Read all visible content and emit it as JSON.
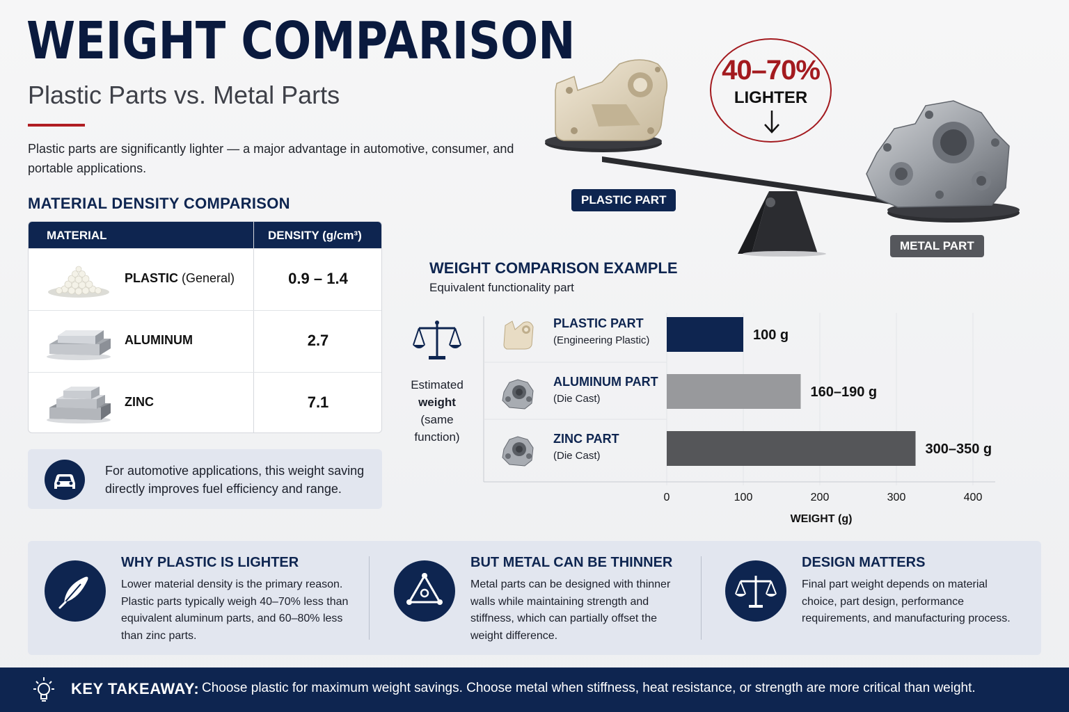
{
  "header": {
    "title": "WEIGHT COMPARISON",
    "subtitle": "Plastic Parts vs. Metal Parts",
    "intro": "Plastic parts are significantly lighter — a major advantage in automotive, consumer, and portable applications."
  },
  "density_table": {
    "heading": "MATERIAL DENSITY COMPARISON",
    "col_material": "MATERIAL",
    "col_density": "DENSITY (g/cm³)",
    "rows": [
      {
        "name": "PLASTIC",
        "qualifier": " (General)",
        "density": "0.9 – 1.4"
      },
      {
        "name": "ALUMINUM",
        "qualifier": "",
        "density": "2.7"
      },
      {
        "name": "ZINC",
        "qualifier": "",
        "density": "7.1"
      }
    ]
  },
  "auto_note": {
    "text": "For automotive applications, this weight saving directly improves fuel efficiency and range.",
    "icon": "car-icon"
  },
  "seesaw": {
    "badge_value": "40–70%",
    "badge_word": "LIGHTER",
    "plastic_tag": "PLASTIC PART",
    "metal_tag": "METAL PART"
  },
  "weight_chart": {
    "heading": "WEIGHT COMPARISON EXAMPLE",
    "subheading": "Equivalent functionality part",
    "side_label_1": "Estimated",
    "side_label_2": "weight",
    "side_label_3": "(same",
    "side_label_4": "function)"
  },
  "chart_data": {
    "type": "bar",
    "orientation": "horizontal",
    "categories": [
      "PLASTIC PART",
      "ALUMINUM PART",
      "ZINC PART"
    ],
    "category_notes": [
      "(Engineering Plastic)",
      "(Die Cast)",
      "(Die Cast)"
    ],
    "values": [
      100,
      175,
      325
    ],
    "value_labels": [
      "100 g",
      "160–190 g",
      "300–350 g"
    ],
    "colors": [
      "#0e2550",
      "#98999c",
      "#555659"
    ],
    "xlabel": "WEIGHT (g)",
    "xlim": [
      0,
      400
    ],
    "xticks": [
      "0",
      "100",
      "200",
      "300",
      "400"
    ],
    "grid": true
  },
  "info_strip": [
    {
      "title": "WHY PLASTIC IS LIGHTER",
      "body": "Lower material density is the primary reason. Plastic parts typically weigh 40–70% less than equivalent aluminum parts, and 60–80% less than zinc parts.",
      "icon": "feather-icon"
    },
    {
      "title": "BUT METAL CAN BE THINNER",
      "body": "Metal parts can be designed with thinner walls while maintaining strength and stiffness, which can partially offset the weight difference.",
      "icon": "triangle-nodes-icon"
    },
    {
      "title": "DESIGN MATTERS",
      "body": "Final part weight depends on material choice, part design, performance requirements, and manufacturing process.",
      "icon": "balance-scale-icon"
    }
  ],
  "footer": {
    "label": "KEY TAKEAWAY:",
    "text": "Choose plastic for maximum weight savings. Choose metal when stiffness, heat resistance, or strength are more critical than weight."
  },
  "colors": {
    "navy": "#0e2550",
    "accent_red": "#a31a1f",
    "strip_bg": "#e2e6ef"
  }
}
